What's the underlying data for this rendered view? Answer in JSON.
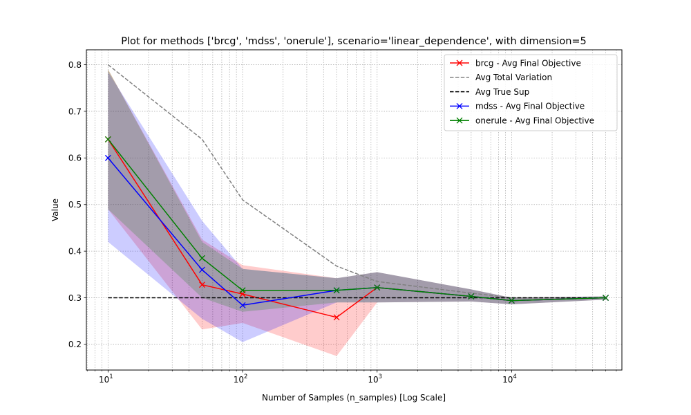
{
  "chart_data": {
    "type": "line",
    "title": "Plot for methods ['brcg', 'mdss', 'onerule'], scenario='linear_dependence',  with dimension=5",
    "xlabel": "Number of Samples (n_samples) [Log Scale]",
    "ylabel": "Value",
    "xscale": "log",
    "xlim": [
      6.9,
      66000
    ],
    "ylim": [
      0.145,
      0.832
    ],
    "x_ticks": [
      10,
      100,
      1000,
      10000
    ],
    "x_tick_labels": [
      {
        "base": "10",
        "exp": "1"
      },
      {
        "base": "10",
        "exp": "2"
      },
      {
        "base": "10",
        "exp": "3"
      },
      {
        "base": "10",
        "exp": "4"
      }
    ],
    "y_ticks": [
      0.2,
      0.3,
      0.4,
      0.5,
      0.6,
      0.7,
      0.8
    ],
    "y_tick_labels": [
      "0.2",
      "0.3",
      "0.4",
      "0.5",
      "0.6",
      "0.7",
      "0.8"
    ],
    "grid": true,
    "legend_position": "top-right",
    "x": [
      10,
      50,
      100,
      500,
      1000,
      5000,
      10000,
      50000
    ],
    "series": [
      {
        "name": "brcg - Avg Final Objective",
        "color": "#ff0000",
        "style": "solid",
        "marker": "x",
        "values": [
          0.64,
          0.328,
          0.308,
          0.258,
          0.322,
          0.303,
          0.294,
          0.3
        ],
        "band_lower": [
          0.49,
          0.232,
          0.246,
          0.175,
          0.29,
          0.292,
          0.286,
          0.296
        ],
        "band_upper": [
          0.79,
          0.425,
          0.37,
          0.342,
          0.355,
          0.318,
          0.3,
          0.303
        ],
        "band_color": "#ff0000"
      },
      {
        "name": "Avg Total Variation",
        "color": "#808080",
        "style": "dashed",
        "marker": "none",
        "values": [
          0.8,
          0.64,
          0.51,
          0.368,
          0.335,
          0.31,
          0.3,
          0.3
        ]
      },
      {
        "name": "Avg True Sup",
        "color": "#000000",
        "style": "dashed",
        "marker": "none",
        "values": [
          0.3,
          0.3,
          0.3,
          0.3,
          0.3,
          0.3,
          0.3,
          0.3
        ]
      },
      {
        "name": "mdss - Avg Final Objective",
        "color": "#0000ff",
        "style": "solid",
        "marker": "x",
        "values": [
          0.6,
          0.36,
          0.284,
          0.316,
          0.322,
          0.303,
          0.294,
          0.3
        ],
        "band_lower": [
          0.42,
          0.255,
          0.205,
          0.29,
          0.29,
          0.292,
          0.286,
          0.296
        ],
        "band_upper": [
          0.785,
          0.465,
          0.362,
          0.342,
          0.355,
          0.318,
          0.3,
          0.303
        ],
        "band_color": "#0000ff"
      },
      {
        "name": "onerule - Avg Final Objective",
        "color": "#008000",
        "style": "solid",
        "marker": "x",
        "values": [
          0.64,
          0.385,
          0.316,
          0.316,
          0.322,
          0.303,
          0.294,
          0.3
        ],
        "band_lower": [
          0.49,
          0.3,
          0.27,
          0.29,
          0.29,
          0.292,
          0.286,
          0.296
        ],
        "band_upper": [
          0.79,
          0.42,
          0.362,
          0.342,
          0.355,
          0.318,
          0.3,
          0.303
        ],
        "band_color": "#008000"
      }
    ]
  }
}
